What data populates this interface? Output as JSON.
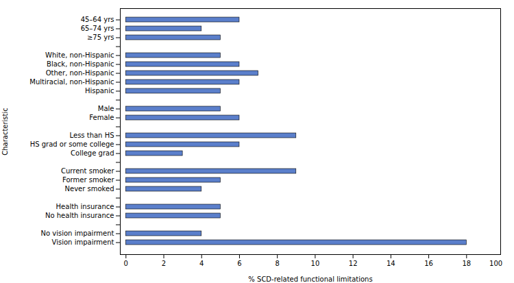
{
  "chart_data": {
    "type": "bar",
    "orientation": "horizontal",
    "xlabel": "% SCD-related functional limitations",
    "ylabel": "Characteristic",
    "categories": [
      "Vision impairment",
      "No vision impairment",
      null,
      "No health insurance",
      "Health insurance",
      null,
      "Never smoked",
      "Former smoker",
      "Current smoker",
      null,
      "College grad",
      "HS grad or some college",
      "Less than HS",
      null,
      "Female",
      "Male",
      null,
      "Hispanic",
      "Multiracial, non-Hispanic",
      "Other, non-Hispanic",
      "Black, non-Hispanic",
      "White, non-Hispanic",
      null,
      "≥75 yrs",
      "65–74 yrs",
      "45–64 yrs"
    ],
    "values": [
      18.0,
      4.0,
      null,
      5.0,
      5.0,
      null,
      4.0,
      5.0,
      9.0,
      null,
      3.0,
      6.0,
      9.0,
      null,
      6.0,
      5.0,
      null,
      5.0,
      6.0,
      7.0,
      6.0,
      5.0,
      null,
      5.0,
      4.0,
      6.0
    ],
    "color": "#5b7fcb",
    "xlim": [
      -0.3,
      19.8
    ],
    "xticks": [
      0,
      2,
      4,
      6,
      8,
      10,
      12,
      14,
      16,
      18
    ],
    "grid": false,
    "annotations": [
      {
        "text": "100",
        "x": 19.55
      }
    ]
  }
}
